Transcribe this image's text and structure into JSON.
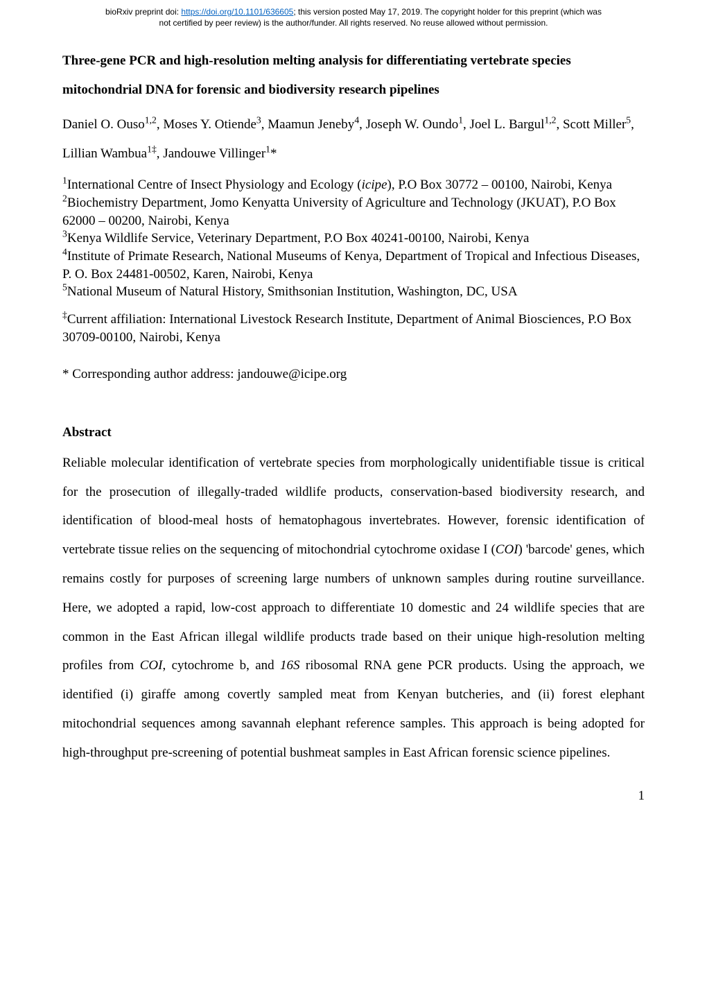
{
  "preprint": {
    "line1_prefix": "bioRxiv preprint doi: ",
    "doi_url": "https://doi.org/10.1101/636605",
    "line1_suffix": "; this version posted May 17, 2019. The copyright holder for this preprint (which was",
    "line2": "not certified by peer review) is the author/funder. All rights reserved. No reuse allowed without permission."
  },
  "title": {
    "line1": "Three-gene PCR and high-resolution melting analysis for differentiating vertebrate species",
    "line2": "mitochondrial DNA for forensic and biodiversity research pipelines"
  },
  "authors": {
    "a1_name": "Daniel O. Ouso",
    "a1_sup": "1,2",
    "a2_name": "Moses Y. Otiende",
    "a2_sup": "3",
    "a3_name": "Maamun Jeneby",
    "a3_sup": "4",
    "a4_name": "Joseph W. Oundo",
    "a4_sup": "1",
    "a5_name": "Joel L. Bargul",
    "a5_sup": "1,2",
    "a6_name": "Scott Miller",
    "a6_sup": "5",
    "a7_name": "Lillian Wambua",
    "a7_sup": "1‡",
    "a8_name": "Jandouwe Villinger",
    "a8_sup": "1",
    "a8_mark": "*"
  },
  "affiliations": {
    "n1": "1",
    "t1a": "International Centre of Insect Physiology and Ecology (",
    "t1b": "icipe",
    "t1c": "), P.O Box 30772 – 00100, Nairobi, Kenya",
    "n2": "2",
    "t2": "Biochemistry Department, Jomo Kenyatta University of Agriculture and Technology (JKUAT), P.O Box 62000 – 00200, Nairobi, Kenya",
    "n3": "3",
    "t3": "Kenya Wildlife Service, Veterinary Department, P.O Box 40241-00100, Nairobi, Kenya",
    "n4": "4",
    "t4": "Institute of Primate Research, National Museums of Kenya, Department of Tropical and Infectious Diseases, P. O. Box 24481-00502, Karen, Nairobi, Kenya",
    "n5": "5",
    "t5": "National Museum of Natural History, Smithsonian Institution, Washington, DC, USA"
  },
  "current_affil": {
    "mark": "‡",
    "text": "Current affiliation: International Livestock Research Institute, Department of Animal Biosciences, P.O Box 30709-00100, Nairobi, Kenya"
  },
  "corresponding": "* Corresponding author address: jandouwe@icipe.org",
  "abstract": {
    "heading": "Abstract",
    "p1": "Reliable molecular identification of vertebrate species from morphologically unidentifiable tissue is critical for the prosecution of illegally-traded wildlife products, conservation-based biodiversity research, and identification of blood-meal hosts of hematophagous invertebrates. However, forensic identification of vertebrate tissue relies on the sequencing of mitochondrial cytochrome oxidase I (",
    "coi": "COI",
    "p2": ") 'barcode' genes, which remains costly for purposes of screening large numbers of unknown samples during routine surveillance. Here, we adopted a rapid, low-cost approach to differentiate 10 domestic and 24 wildlife species that are common in the East African illegal wildlife products trade based on their unique high-resolution melting profiles from ",
    "coi2": "COI",
    "p3": ", cytochrome b, and ",
    "sixteen_s": "16S",
    "p4": " ribosomal RNA gene PCR products. Using the approach, we identified (i) giraffe among covertly sampled meat from Kenyan butcheries, and (ii) forest elephant mitochondrial sequences among savannah elephant reference samples. This approach is being adopted for high-throughput pre-screening of potential bushmeat samples in East African forensic science pipelines."
  },
  "page_number": "1"
}
